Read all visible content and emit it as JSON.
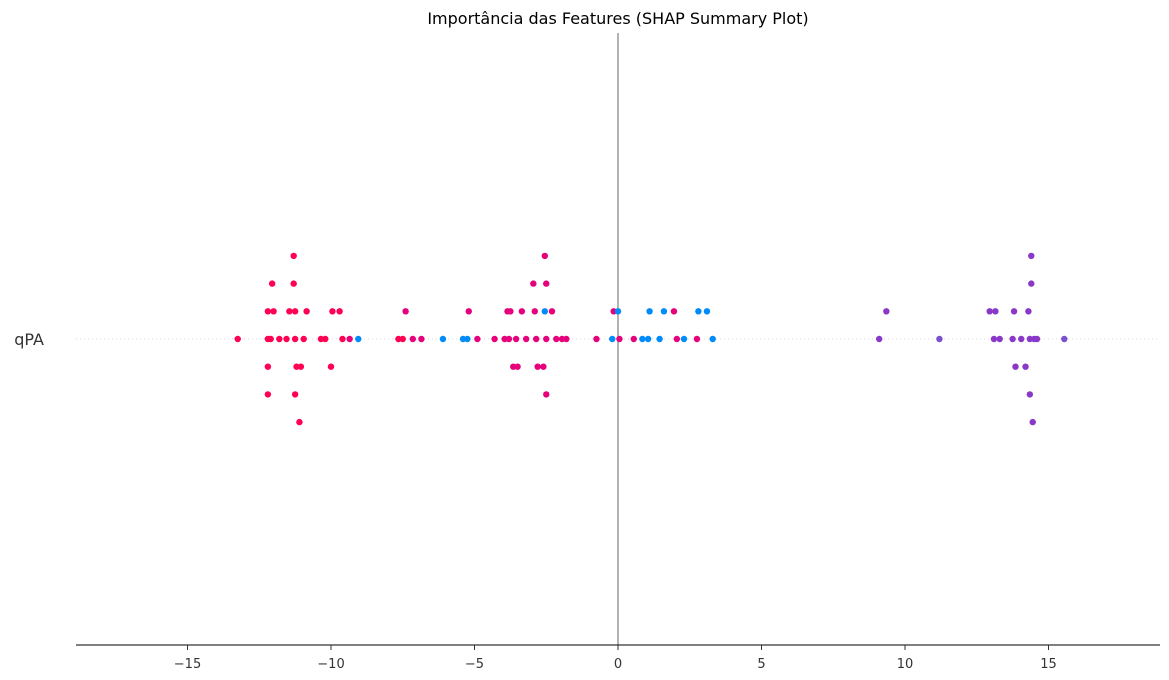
{
  "chart_data": {
    "type": "scatter",
    "title": "Importância das Features (SHAP Summary Plot)",
    "xlabel": "",
    "ylabel": "",
    "xlim": [
      -18.9,
      18.9
    ],
    "x_ticks": [
      -15,
      -10,
      -5,
      0,
      5,
      10,
      15
    ],
    "x_tick_labels": [
      "−15",
      "−10",
      "−5",
      "0",
      "5",
      "10",
      "15"
    ],
    "features": [
      "qPA"
    ],
    "colors": {
      "magenta": "#ff0052",
      "pink": "#e6007b",
      "blue": "#008bfa",
      "purple": "#8a38c8",
      "violet": "#7a4fd0"
    },
    "points": [
      {
        "x": -13.25,
        "row": 0,
        "color": "#ff0052"
      },
      {
        "x": -12.2,
        "row": 0,
        "color": "#ff0052"
      },
      {
        "x": -12.2,
        "row": 1,
        "color": "#ff0052"
      },
      {
        "x": -12.2,
        "row": -1,
        "color": "#ff0052"
      },
      {
        "x": -12.2,
        "row": -2,
        "color": "#ff0052"
      },
      {
        "x": -12.1,
        "row": 0,
        "color": "#ff0052"
      },
      {
        "x": -12.05,
        "row": 2,
        "color": "#ff0052"
      },
      {
        "x": -12.0,
        "row": 1,
        "color": "#ff0052"
      },
      {
        "x": -11.8,
        "row": 0,
        "color": "#ff0052"
      },
      {
        "x": -11.55,
        "row": 0,
        "color": "#ff0052"
      },
      {
        "x": -11.45,
        "row": 1,
        "color": "#ff0052"
      },
      {
        "x": -11.3,
        "row": 3,
        "color": "#ff0052"
      },
      {
        "x": -11.3,
        "row": 2,
        "color": "#ff0052"
      },
      {
        "x": -11.25,
        "row": 1,
        "color": "#ff0052"
      },
      {
        "x": -11.25,
        "row": 0,
        "color": "#ff0052"
      },
      {
        "x": -11.25,
        "row": -2,
        "color": "#ff0052"
      },
      {
        "x": -11.2,
        "row": -1,
        "color": "#ff0052"
      },
      {
        "x": -11.1,
        "row": -3,
        "color": "#ff0052"
      },
      {
        "x": -11.05,
        "row": -1,
        "color": "#ff0052"
      },
      {
        "x": -10.95,
        "row": 0,
        "color": "#ff0052"
      },
      {
        "x": -10.85,
        "row": 1,
        "color": "#ff0052"
      },
      {
        "x": -10.35,
        "row": 0,
        "color": "#ff0052"
      },
      {
        "x": -10.2,
        "row": 0,
        "color": "#ff0052"
      },
      {
        "x": -10.0,
        "row": -1,
        "color": "#ff0052"
      },
      {
        "x": -9.95,
        "row": 1,
        "color": "#ff0052"
      },
      {
        "x": -9.7,
        "row": 1,
        "color": "#ff0052"
      },
      {
        "x": -9.6,
        "row": 0,
        "color": "#ff0052"
      },
      {
        "x": -9.35,
        "row": 0,
        "color": "#e6007b"
      },
      {
        "x": -9.05,
        "row": 0,
        "color": "#008bfa"
      },
      {
        "x": -7.65,
        "row": 0,
        "color": "#ff0052"
      },
      {
        "x": -7.5,
        "row": 0,
        "color": "#ff0052"
      },
      {
        "x": -7.4,
        "row": 1,
        "color": "#e6007b"
      },
      {
        "x": -7.15,
        "row": 0,
        "color": "#e6007b"
      },
      {
        "x": -6.85,
        "row": 0,
        "color": "#e6007b"
      },
      {
        "x": -6.1,
        "row": 0,
        "color": "#008bfa"
      },
      {
        "x": -5.4,
        "row": 0,
        "color": "#008bfa"
      },
      {
        "x": -5.25,
        "row": 0,
        "color": "#008bfa"
      },
      {
        "x": -5.2,
        "row": 1,
        "color": "#e6007b"
      },
      {
        "x": -4.9,
        "row": 0,
        "color": "#e6007b"
      },
      {
        "x": -4.3,
        "row": 0,
        "color": "#e6007b"
      },
      {
        "x": -3.95,
        "row": 0,
        "color": "#e6007b"
      },
      {
        "x": -3.85,
        "row": 1,
        "color": "#e6007b"
      },
      {
        "x": -3.8,
        "row": 0,
        "color": "#e6007b"
      },
      {
        "x": -3.75,
        "row": 1,
        "color": "#e6007b"
      },
      {
        "x": -3.65,
        "row": -1,
        "color": "#e6007b"
      },
      {
        "x": -3.55,
        "row": 0,
        "color": "#e6007b"
      },
      {
        "x": -3.5,
        "row": -1,
        "color": "#e6007b"
      },
      {
        "x": -3.35,
        "row": 1,
        "color": "#e6007b"
      },
      {
        "x": -3.2,
        "row": 0,
        "color": "#e6007b"
      },
      {
        "x": -2.95,
        "row": 2,
        "color": "#e6007b"
      },
      {
        "x": -2.9,
        "row": 1,
        "color": "#e6007b"
      },
      {
        "x": -2.85,
        "row": 0,
        "color": "#e6007b"
      },
      {
        "x": -2.8,
        "row": -1,
        "color": "#e6007b"
      },
      {
        "x": -2.6,
        "row": -1,
        "color": "#e6007b"
      },
      {
        "x": -2.55,
        "row": 3,
        "color": "#e6007b"
      },
      {
        "x": -2.5,
        "row": 2,
        "color": "#e6007b"
      },
      {
        "x": -2.5,
        "row": -2,
        "color": "#e6007b"
      },
      {
        "x": -2.55,
        "row": 1,
        "color": "#008bfa"
      },
      {
        "x": -2.5,
        "row": 0,
        "color": "#e6007b"
      },
      {
        "x": -2.3,
        "row": 1,
        "color": "#e6007b"
      },
      {
        "x": -2.15,
        "row": 0,
        "color": "#e6007b"
      },
      {
        "x": -1.95,
        "row": 0,
        "color": "#e6007b"
      },
      {
        "x": -1.8,
        "row": 0,
        "color": "#e6007b"
      },
      {
        "x": -0.75,
        "row": 0,
        "color": "#e6007b"
      },
      {
        "x": -0.2,
        "row": 0,
        "color": "#008bfa"
      },
      {
        "x": -0.15,
        "row": 1,
        "color": "#e6007b"
      },
      {
        "x": 0.0,
        "row": 1,
        "color": "#008bfa"
      },
      {
        "x": 0.05,
        "row": 0,
        "color": "#e6007b"
      },
      {
        "x": 0.55,
        "row": 0,
        "color": "#e6007b"
      },
      {
        "x": 0.85,
        "row": 0,
        "color": "#008bfa"
      },
      {
        "x": 1.05,
        "row": 0,
        "color": "#008bfa"
      },
      {
        "x": 1.1,
        "row": 1,
        "color": "#008bfa"
      },
      {
        "x": 1.45,
        "row": 0,
        "color": "#008bfa"
      },
      {
        "x": 1.6,
        "row": 1,
        "color": "#008bfa"
      },
      {
        "x": 1.95,
        "row": 1,
        "color": "#e6007b"
      },
      {
        "x": 2.05,
        "row": 0,
        "color": "#e6007b"
      },
      {
        "x": 2.3,
        "row": 0,
        "color": "#008bfa"
      },
      {
        "x": 2.75,
        "row": 0,
        "color": "#e6007b"
      },
      {
        "x": 2.8,
        "row": 1,
        "color": "#008bfa"
      },
      {
        "x": 3.1,
        "row": 1,
        "color": "#008bfa"
      },
      {
        "x": 3.3,
        "row": 0,
        "color": "#008bfa"
      },
      {
        "x": 9.1,
        "row": 0,
        "color": "#8a38c8"
      },
      {
        "x": 9.35,
        "row": 1,
        "color": "#8a38c8"
      },
      {
        "x": 11.2,
        "row": 0,
        "color": "#7a4fd0"
      },
      {
        "x": 12.95,
        "row": 1,
        "color": "#8a38c8"
      },
      {
        "x": 13.1,
        "row": 0,
        "color": "#8a38c8"
      },
      {
        "x": 13.15,
        "row": 1,
        "color": "#8a38c8"
      },
      {
        "x": 13.3,
        "row": 0,
        "color": "#8a38c8"
      },
      {
        "x": 13.75,
        "row": 0,
        "color": "#8a38c8"
      },
      {
        "x": 13.8,
        "row": 1,
        "color": "#8a38c8"
      },
      {
        "x": 13.85,
        "row": -1,
        "color": "#8a38c8"
      },
      {
        "x": 14.05,
        "row": 0,
        "color": "#8a38c8"
      },
      {
        "x": 14.2,
        "row": -1,
        "color": "#8a38c8"
      },
      {
        "x": 14.3,
        "row": 1,
        "color": "#8a38c8"
      },
      {
        "x": 14.35,
        "row": 0,
        "color": "#8a38c8"
      },
      {
        "x": 14.35,
        "row": -2,
        "color": "#8a38c8"
      },
      {
        "x": 14.4,
        "row": 3,
        "color": "#8a38c8"
      },
      {
        "x": 14.4,
        "row": 2,
        "color": "#8a38c8"
      },
      {
        "x": 14.45,
        "row": -3,
        "color": "#8a38c8"
      },
      {
        "x": 14.5,
        "row": 0,
        "color": "#8a38c8"
      },
      {
        "x": 14.6,
        "row": 0,
        "color": "#8a38c8"
      },
      {
        "x": 15.55,
        "row": 0,
        "color": "#7a4fd0"
      }
    ]
  }
}
